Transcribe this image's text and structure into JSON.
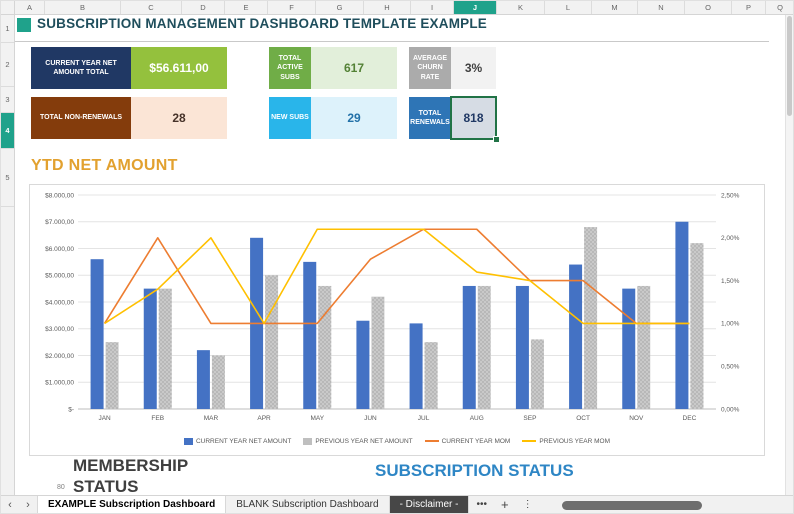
{
  "accent": {
    "selection_teal": "#1FA28B",
    "excel_green": "#217346",
    "title_color": "#1F4E5C",
    "ytd_color": "#E2A12F",
    "membership_color": "#3F3F3F",
    "subscription_color": "#2E86C5"
  },
  "spreadsheet": {
    "columns": [
      "A",
      "B",
      "C",
      "D",
      "E",
      "F",
      "G",
      "H",
      "I",
      "J",
      "K",
      "L",
      "M",
      "N",
      "O",
      "P",
      "Q"
    ],
    "selected_column": "J",
    "rows": [
      "1",
      "2",
      "3",
      "4",
      "5"
    ],
    "selected_row": "4"
  },
  "title": "SUBSCRIPTION MANAGEMENT DASHBOARD TEMPLATE EXAMPLE",
  "kpis": [
    {
      "label": "CURRENT YEAR NET AMOUNT TOTAL",
      "value": "$56.611,00",
      "label_bg": "#203864",
      "value_bg": "#94C13D",
      "value_color": "#FFFFFF"
    },
    {
      "label": "TOTAL ACTIVE SUBS",
      "value": "617",
      "label_bg": "#70AD47",
      "value_bg": "#E2EFDA",
      "value_color": "#538135"
    },
    {
      "label": "AVERAGE CHURN RATE",
      "value": "3%",
      "label_bg": "#ABABAB",
      "value_bg": "#F2F2F2",
      "value_color": "#404040"
    },
    {
      "label": "TOTAL NON-RENEWALS",
      "value": "28",
      "label_bg": "#843C0C",
      "value_bg": "#FBE5D6",
      "value_color": "#463229"
    },
    {
      "label": "NEW SUBS",
      "value": "29",
      "label_bg": "#29B5EA",
      "value_bg": "#DDF2FB",
      "value_color": "#2271A8"
    },
    {
      "label": "TOTAL RENEWALS",
      "value": "818",
      "label_bg": "#2E75B6",
      "value_bg": "#D6DCE4",
      "value_color": "#203864"
    }
  ],
  "section_title": "YTD NET AMOUNT",
  "chart_data": {
    "type": "bar",
    "subtype": "combo-bar-line",
    "title": "YTD NET AMOUNT",
    "categories": [
      "JAN",
      "FEB",
      "MAR",
      "APR",
      "MAY",
      "JUN",
      "JUL",
      "AUG",
      "SEP",
      "OCT",
      "NOV",
      "DEC"
    ],
    "left_axis": {
      "min": 0,
      "max": 8000,
      "step": 1000,
      "ticks": [
        "$8.000,00",
        "$7.000,00",
        "$6.000,00",
        "$5.000,00",
        "$4.000,00",
        "$3.000,00",
        "$2.000,00",
        "$1.000,00",
        "$-"
      ]
    },
    "right_axis": {
      "min": 0,
      "max": 2.5,
      "step": 0.5,
      "ticks": [
        "2,50%",
        "2,00%",
        "1,50%",
        "1,00%",
        "0,50%",
        "0,00%"
      ]
    },
    "series": [
      {
        "name": "CURRENT YEAR NET AMOUNT",
        "type": "bar",
        "axis": "left",
        "color": "#4472C4",
        "values": [
          5600,
          4500,
          2200,
          6400,
          5500,
          3300,
          3200,
          4600,
          4600,
          5400,
          4500,
          7000
        ]
      },
      {
        "name": "PREVIOUS YEAR NET AMOUNT",
        "type": "bar",
        "axis": "left",
        "color": "#BFBFBF",
        "pattern": true,
        "values": [
          2500,
          4500,
          2000,
          5000,
          4600,
          4200,
          2500,
          4600,
          2600,
          6800,
          4600,
          6200
        ]
      },
      {
        "name": "CURRENT YEAR MOM",
        "type": "line",
        "axis": "right",
        "color": "#ED7D31",
        "values": [
          1.0,
          2.0,
          1.0,
          1.0,
          1.0,
          1.75,
          2.1,
          2.1,
          1.5,
          1.5,
          1.0,
          1.0
        ]
      },
      {
        "name": "PREVIOUS YEAR MOM",
        "type": "line",
        "axis": "right",
        "color": "#FFC000",
        "values": [
          1.0,
          1.4,
          2.0,
          1.0,
          2.1,
          2.1,
          2.1,
          1.6,
          1.5,
          1.0,
          1.0,
          1.0
        ]
      }
    ],
    "legend_position": "bottom",
    "grid": true
  },
  "lower_sections": {
    "left_title": "MEMBERSHIP STATUS",
    "right_title": "SUBSCRIPTION STATUS",
    "axis_fragment": "80"
  },
  "sheet_tabs": {
    "nav_left": "‹",
    "nav_right": "›",
    "tabs": [
      {
        "label": "EXAMPLE Subscription Dashboard",
        "active": true
      },
      {
        "label": "BLANK Subscription Dashboard",
        "active": false
      },
      {
        "label": "- Disclaimer -",
        "active": false
      }
    ],
    "more": "•••",
    "add": "+",
    "menu": "⋮"
  }
}
